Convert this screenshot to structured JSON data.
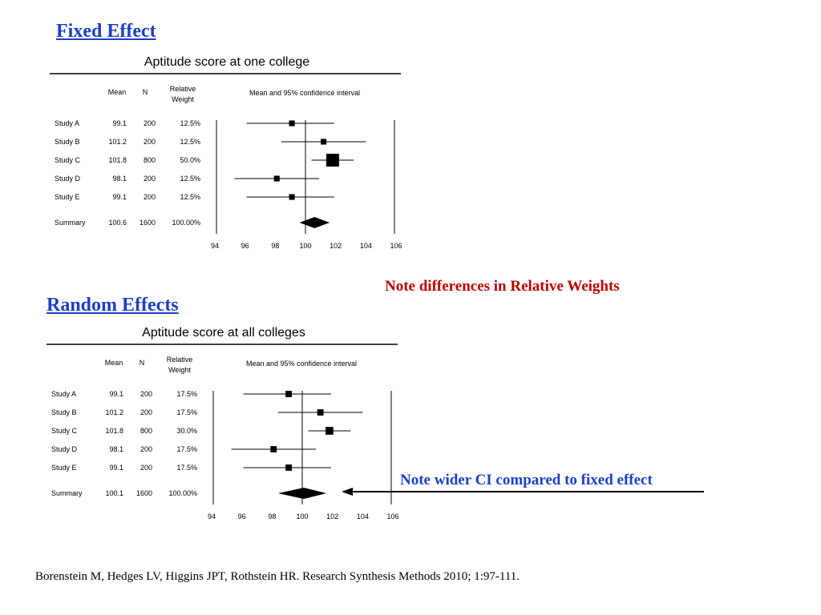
{
  "headings": {
    "fixed": "Fixed Effect",
    "random": "Random Effects"
  },
  "notes": {
    "weights": "Note differences in Relative Weights",
    "ci": "Note wider CI compared to fixed effect"
  },
  "citation": "Borenstein M, Hedges LV, Higgins JPT, Rothstein HR. Research Synthesis Methods 2010; 1:97-111.",
  "colors": {
    "heading": "#1a3fc8",
    "note_weights": "#c00000",
    "note_ci": "#1a3fc8"
  },
  "chart_data": [
    {
      "type": "table",
      "subtype": "forest-plot",
      "title": "Aptitude score at one college",
      "columns": [
        "",
        "Mean",
        "N",
        "Relative Weight",
        "Mean and 95% confidence interval"
      ],
      "xlim": [
        94,
        106
      ],
      "ticks": [
        "94",
        "96",
        "98",
        "100",
        "102",
        "104",
        "106"
      ],
      "studies": [
        {
          "name": "Study A",
          "mean": "99.1",
          "n": "200",
          "weight": "12.5%",
          "value": 99.1,
          "lower": 96.1,
          "upper": 101.9
        },
        {
          "name": "Study B",
          "mean": "101.2",
          "n": "200",
          "weight": "12.5%",
          "value": 101.2,
          "lower": 98.4,
          "upper": 104.0
        },
        {
          "name": "Study C",
          "mean": "101.8",
          "n": "800",
          "weight": "50.0%",
          "value": 101.8,
          "lower": 100.4,
          "upper": 103.2
        },
        {
          "name": "Study D",
          "mean": "98.1",
          "n": "200",
          "weight": "12.5%",
          "value": 98.1,
          "lower": 95.3,
          "upper": 100.9
        },
        {
          "name": "Study E",
          "mean": "99.1",
          "n": "200",
          "weight": "12.5%",
          "value": 99.1,
          "lower": 96.1,
          "upper": 101.9
        }
      ],
      "summary": {
        "name": "Summary",
        "mean": "100.6",
        "n": "1600",
        "weight": "100.00%",
        "value": 100.6,
        "lower": 99.6,
        "upper": 101.6
      }
    },
    {
      "type": "table",
      "subtype": "forest-plot",
      "title": "Aptitude score at all colleges",
      "columns": [
        "",
        "Mean",
        "N",
        "Relative Weight",
        "Mean and 95% confidence interval"
      ],
      "xlim": [
        94,
        106
      ],
      "ticks": [
        "94",
        "96",
        "98",
        "100",
        "102",
        "104",
        "106"
      ],
      "studies": [
        {
          "name": "Study A",
          "mean": "99.1",
          "n": "200",
          "weight": "17.5%",
          "value": 99.1,
          "lower": 96.1,
          "upper": 101.9
        },
        {
          "name": "Study B",
          "mean": "101.2",
          "n": "200",
          "weight": "17.5%",
          "value": 101.2,
          "lower": 98.4,
          "upper": 104.0
        },
        {
          "name": "Study C",
          "mean": "101.8",
          "n": "800",
          "weight": "30.0%",
          "value": 101.8,
          "lower": 100.4,
          "upper": 103.2
        },
        {
          "name": "Study D",
          "mean": "98.1",
          "n": "200",
          "weight": "17.5%",
          "value": 98.1,
          "lower": 95.3,
          "upper": 100.9
        },
        {
          "name": "Study E",
          "mean": "99.1",
          "n": "200",
          "weight": "17.5%",
          "value": 99.1,
          "lower": 96.1,
          "upper": 101.9
        }
      ],
      "summary": {
        "name": "Summary",
        "mean": "100.1",
        "n": "1600",
        "weight": "100.00%",
        "value": 100.1,
        "lower": 98.4,
        "upper": 101.6
      }
    }
  ]
}
